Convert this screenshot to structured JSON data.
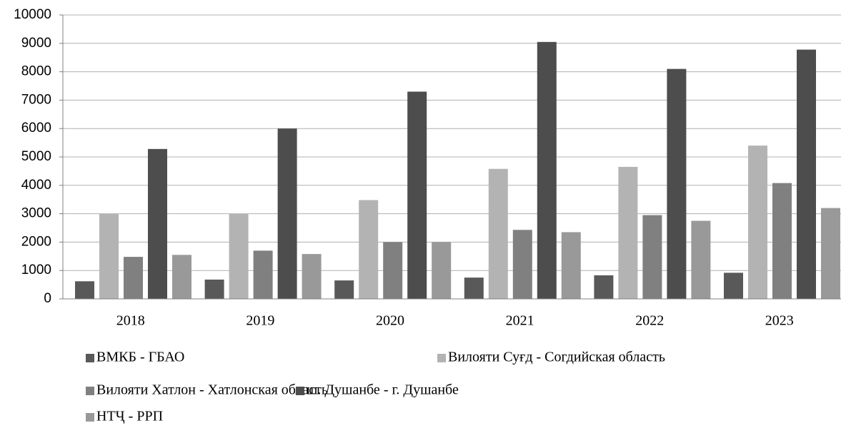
{
  "chart_data": {
    "type": "bar",
    "categories": [
      "2018",
      "2019",
      "2020",
      "2021",
      "2022",
      "2023"
    ],
    "series": [
      {
        "name": "ВМКБ - ГБАО",
        "color": "#595959",
        "values": [
          620,
          680,
          650,
          750,
          830,
          920
        ]
      },
      {
        "name": "Вилояти Суғд - Согдийская  область",
        "color": "#b3b3b3",
        "values": [
          3000,
          3000,
          3480,
          4580,
          4650,
          5400
        ]
      },
      {
        "name": "Вилояти Хатлон - Хатлонская   область",
        "color": "#808080",
        "values": [
          1480,
          1700,
          2000,
          2430,
          2950,
          4080
        ]
      },
      {
        "name": "ш. Душанбе - г. Душанбе",
        "color": "#4d4d4d",
        "values": [
          5280,
          6000,
          7300,
          9050,
          8100,
          8780
        ]
      },
      {
        "name": "НТҶ  - РРП",
        "color": "#999999",
        "values": [
          1550,
          1580,
          2000,
          2350,
          2750,
          3200
        ]
      }
    ],
    "ylim": [
      0,
      10000
    ],
    "yticks": [
      0,
      1000,
      2000,
      3000,
      4000,
      5000,
      6000,
      7000,
      8000,
      9000,
      10000
    ],
    "grid": true,
    "legend": "bottom"
  }
}
